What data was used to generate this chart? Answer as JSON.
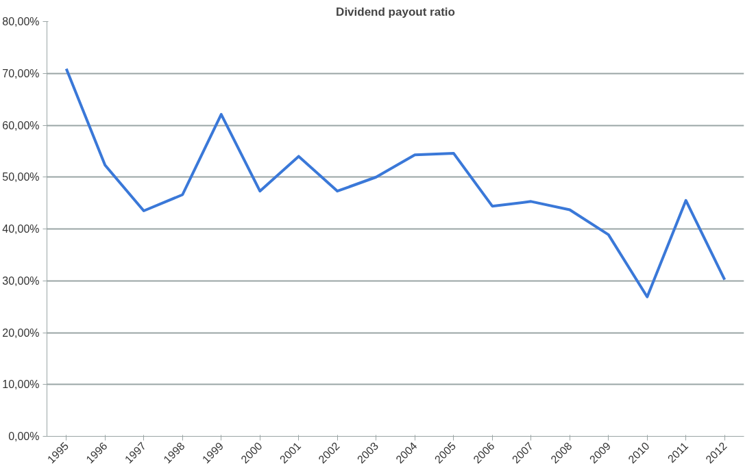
{
  "chart_data": {
    "type": "line",
    "title": "Dividend payout ratio",
    "categories": [
      "1995",
      "1996",
      "1997",
      "1998",
      "1999",
      "2000",
      "2001",
      "2002",
      "2003",
      "2004",
      "2005",
      "2006",
      "2007",
      "2008",
      "2009",
      "2010",
      "2011",
      "2012"
    ],
    "series": [
      {
        "color": "#3a78d8",
        "values": [
          70.9,
          52.3,
          43.5,
          46.6,
          62.1,
          47.3,
          54.0,
          47.3,
          50.0,
          54.3,
          54.6,
          44.4,
          45.3,
          43.7,
          38.9,
          26.9,
          45.5,
          30.2
        ]
      }
    ],
    "ylim": [
      0,
      80
    ],
    "yticks": [
      {
        "value": 0,
        "label": "0,00%"
      },
      {
        "value": 10,
        "label": "10,00%"
      },
      {
        "value": 20,
        "label": "20,00%"
      },
      {
        "value": 30,
        "label": "30,00%"
      },
      {
        "value": 40,
        "label": "40,00%"
      },
      {
        "value": 50,
        "label": "50,00%"
      },
      {
        "value": 60,
        "label": "60,00%"
      },
      {
        "value": 70,
        "label": "70,00%"
      },
      {
        "value": 80,
        "label": "80,00%"
      }
    ],
    "grid": "y",
    "marker": "none",
    "line_style": "solid"
  }
}
